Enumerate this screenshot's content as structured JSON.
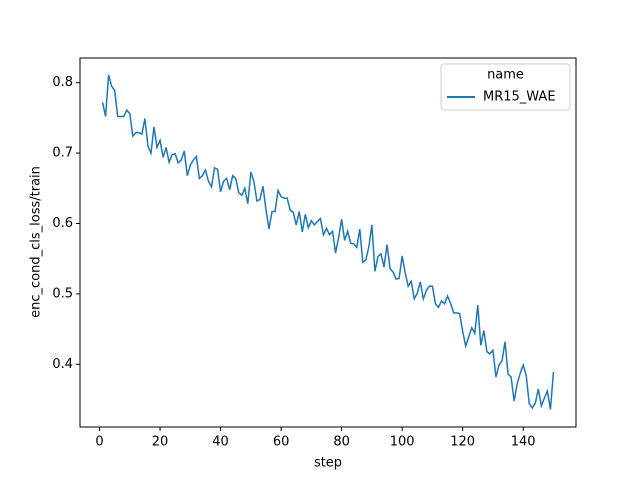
{
  "chart_data": {
    "type": "line",
    "x_label": "step",
    "y_label": "enc_cond_cls_loss/train",
    "legend_title": "name",
    "legend_position": "upper right",
    "x": [
      1,
      2,
      3,
      4,
      5,
      6,
      7,
      8,
      9,
      10,
      11,
      12,
      13,
      14,
      15,
      16,
      17,
      18,
      19,
      20,
      21,
      22,
      23,
      24,
      25,
      26,
      27,
      28,
      29,
      30,
      31,
      32,
      33,
      34,
      35,
      36,
      37,
      38,
      39,
      40,
      41,
      42,
      43,
      44,
      45,
      46,
      47,
      48,
      49,
      50,
      51,
      52,
      53,
      54,
      55,
      56,
      57,
      58,
      59,
      60,
      61,
      62,
      63,
      64,
      65,
      66,
      67,
      68,
      69,
      70,
      71,
      72,
      73,
      74,
      75,
      76,
      77,
      78,
      79,
      80,
      81,
      82,
      83,
      84,
      85,
      86,
      87,
      88,
      89,
      90,
      91,
      92,
      93,
      94,
      95,
      96,
      97,
      98,
      99,
      100,
      101,
      102,
      103,
      104,
      105,
      106,
      107,
      108,
      109,
      110,
      111,
      112,
      113,
      114,
      115,
      116,
      117,
      118,
      119,
      120,
      121,
      122,
      123,
      124,
      125,
      126,
      127,
      128,
      129,
      130,
      131,
      132,
      133,
      134,
      135,
      136,
      137,
      138,
      139,
      140,
      141,
      142,
      143,
      144,
      145,
      146,
      147,
      148,
      149,
      150
    ],
    "series": [
      {
        "name": "MR15_WAE",
        "color": "#1f77b4",
        "values": [
          0.772,
          0.752,
          0.811,
          0.795,
          0.789,
          0.752,
          0.752,
          0.752,
          0.761,
          0.756,
          0.724,
          0.729,
          0.729,
          0.727,
          0.749,
          0.71,
          0.7,
          0.737,
          0.708,
          0.718,
          0.694,
          0.708,
          0.687,
          0.698,
          0.699,
          0.686,
          0.69,
          0.703,
          0.668,
          0.683,
          0.69,
          0.695,
          0.664,
          0.668,
          0.676,
          0.66,
          0.652,
          0.679,
          0.677,
          0.645,
          0.66,
          0.664,
          0.648,
          0.668,
          0.664,
          0.644,
          0.64,
          0.65,
          0.628,
          0.673,
          0.66,
          0.632,
          0.634,
          0.653,
          0.62,
          0.592,
          0.617,
          0.617,
          0.647,
          0.638,
          0.636,
          0.636,
          0.619,
          0.616,
          0.598,
          0.617,
          0.588,
          0.613,
          0.594,
          0.604,
          0.598,
          0.603,
          0.607,
          0.584,
          0.593,
          0.584,
          0.589,
          0.558,
          0.58,
          0.606,
          0.576,
          0.589,
          0.572,
          0.571,
          0.566,
          0.592,
          0.545,
          0.548,
          0.567,
          0.598,
          0.532,
          0.553,
          0.557,
          0.538,
          0.57,
          0.536,
          0.531,
          0.521,
          0.522,
          0.554,
          0.53,
          0.511,
          0.518,
          0.493,
          0.501,
          0.517,
          0.493,
          0.505,
          0.511,
          0.511,
          0.486,
          0.481,
          0.49,
          0.486,
          0.497,
          0.487,
          0.473,
          0.473,
          0.472,
          0.447,
          0.426,
          0.439,
          0.452,
          0.444,
          0.484,
          0.427,
          0.448,
          0.418,
          0.415,
          0.42,
          0.382,
          0.399,
          0.405,
          0.432,
          0.386,
          0.382,
          0.348,
          0.372,
          0.387,
          0.399,
          0.384,
          0.344,
          0.338,
          0.345,
          0.365,
          0.341,
          0.352,
          0.362,
          0.336,
          0.389
        ]
      }
    ],
    "xlim": [
      -6.45,
      157.45
    ],
    "xticks": [
      0,
      20,
      40,
      60,
      80,
      100,
      120,
      140
    ],
    "ylim": [
      0.311,
      0.835
    ],
    "yticks": [
      0.4,
      0.5,
      0.6,
      0.7,
      0.8
    ]
  }
}
